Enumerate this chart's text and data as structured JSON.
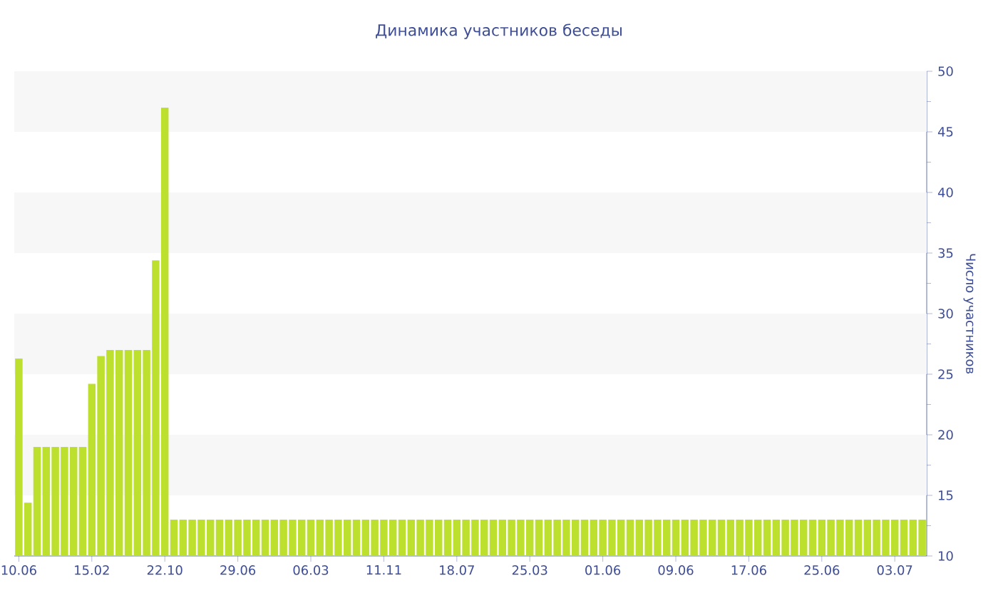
{
  "chart_data": {
    "type": "bar",
    "title": "Динамика участников беседы",
    "ylabel": "Число участников",
    "categories": [
      "10.06",
      null,
      null,
      null,
      null,
      null,
      null,
      null,
      "15.02",
      null,
      null,
      null,
      null,
      null,
      null,
      null,
      "22.10",
      null,
      null,
      null,
      null,
      null,
      null,
      null,
      "29.06",
      null,
      null,
      null,
      null,
      null,
      null,
      null,
      "06.03",
      null,
      null,
      null,
      null,
      null,
      null,
      null,
      "11.11",
      null,
      null,
      null,
      null,
      null,
      null,
      null,
      "18.07",
      null,
      null,
      null,
      null,
      null,
      null,
      null,
      "25.03",
      null,
      null,
      null,
      null,
      null,
      null,
      null,
      "01.06",
      null,
      null,
      null,
      null,
      null,
      null,
      null,
      "09.06",
      null,
      null,
      null,
      null,
      null,
      null,
      null,
      "17.06",
      null,
      null,
      null,
      null,
      null,
      null,
      null,
      "25.06",
      null,
      null,
      null,
      null,
      null,
      null,
      null,
      "03.07",
      null,
      null,
      null
    ],
    "values": [
      26.3,
      14.4,
      19,
      19,
      19,
      19,
      19,
      19,
      24.2,
      26.5,
      27,
      27,
      27,
      27,
      27,
      34.4,
      47,
      13,
      13,
      13,
      13,
      13,
      13,
      13,
      13,
      13,
      13,
      13,
      13,
      13,
      13,
      13,
      13,
      13,
      13,
      13,
      13,
      13,
      13,
      13,
      13,
      13,
      13,
      13,
      13,
      13,
      13,
      13,
      13,
      13,
      13,
      13,
      13,
      13,
      13,
      13,
      13,
      13,
      13,
      13,
      13,
      13,
      13,
      13,
      13,
      13,
      13,
      13,
      13,
      13,
      13,
      13,
      13,
      13,
      13,
      13,
      13,
      13,
      13,
      13,
      13,
      13,
      13,
      13,
      13,
      13,
      13,
      13,
      13,
      13,
      13,
      13,
      13,
      13,
      13,
      13,
      13,
      13,
      13,
      13
    ],
    "color": "#bde02f",
    "ylim": [
      10,
      50
    ],
    "yticks": [
      10,
      15,
      20,
      25,
      30,
      35,
      40,
      45,
      50
    ],
    "bands": [
      {
        "axis": "y",
        "from": 15,
        "to": 20,
        "color": "#f7f7f7"
      },
      {
        "axis": "y",
        "from": 25,
        "to": 30,
        "color": "#f7f7f7"
      },
      {
        "axis": "y",
        "from": 35,
        "to": 40,
        "color": "#f7f7f7"
      },
      {
        "axis": "y",
        "from": 45,
        "to": 50,
        "color": "#f7f7f7"
      }
    ]
  }
}
